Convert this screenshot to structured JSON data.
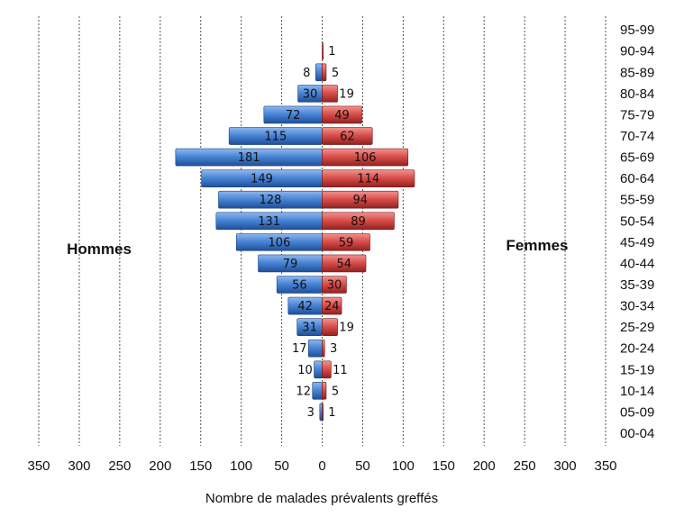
{
  "chart_data": {
    "type": "bar",
    "orientation": "horizontal",
    "categories": [
      "00-04",
      "05-09",
      "10-14",
      "15-19",
      "20-24",
      "25-29",
      "30-34",
      "35-39",
      "40-44",
      "45-49",
      "50-54",
      "55-59",
      "60-64",
      "65-69",
      "70-74",
      "75-79",
      "80-84",
      "85-89",
      "90-94",
      "95-99"
    ],
    "series": [
      {
        "name": "Hommes",
        "direction": "left",
        "color": "#4a86d6",
        "values": [
          0,
          3,
          12,
          10,
          17,
          31,
          42,
          56,
          79,
          106,
          131,
          128,
          149,
          181,
          115,
          72,
          30,
          8,
          0,
          0
        ],
        "labels": [
          "",
          "3",
          "12",
          "10",
          "17",
          "31",
          "42",
          "56",
          "79",
          "106",
          "131",
          "128",
          "149",
          "181",
          "115",
          "72",
          "30",
          "8",
          "",
          ""
        ]
      },
      {
        "name": "Femmes",
        "direction": "right",
        "color": "#d9504c",
        "values": [
          0,
          1,
          5,
          11,
          3,
          19,
          24,
          30,
          54,
          59,
          89,
          94,
          114,
          106,
          62,
          49,
          19,
          5,
          1,
          0
        ],
        "labels": [
          "",
          "1",
          "5",
          "11",
          "3",
          "19",
          "24",
          "30",
          "54",
          "59",
          "89",
          "94",
          "114",
          "106",
          "62",
          "49",
          "19",
          "5",
          "1",
          ""
        ]
      }
    ],
    "xticks": [
      "350",
      "300",
      "250",
      "200",
      "150",
      "100",
      "50",
      "0",
      "50",
      "100",
      "150",
      "200",
      "250",
      "300",
      "350"
    ],
    "xlim": [
      -350,
      350
    ],
    "xlabel": "Nombre de malades prévalents greffés",
    "ylabel": "",
    "grid": "vertical-dashed",
    "legend": "none"
  }
}
